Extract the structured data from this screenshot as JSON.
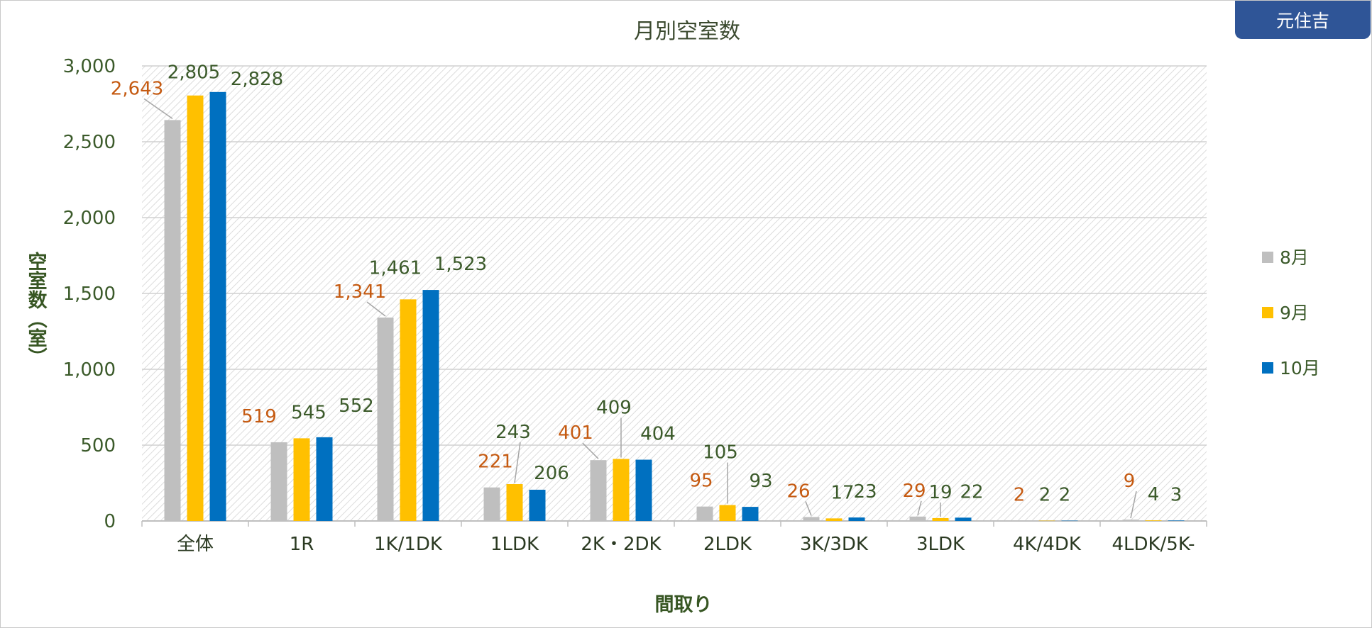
{
  "badge": {
    "label": "元住吉"
  },
  "chart_data": {
    "type": "bar",
    "title": "月別空室数",
    "xlabel": "間取り",
    "ylabel": "空室数（室）",
    "ylim": [
      0,
      3000
    ],
    "yticks": [
      0,
      500,
      1000,
      1500,
      2000,
      2500,
      3000
    ],
    "ytick_labels": [
      "0",
      "500",
      "1,000",
      "1,500",
      "2,000",
      "2,500",
      "3,000"
    ],
    "categories": [
      "全体",
      "1R",
      "1K/1DK",
      "1LDK",
      "2K・2DK",
      "2LDK",
      "3K/3DK",
      "3LDK",
      "4K/4DK",
      "4LDK/5K-"
    ],
    "series": [
      {
        "name": "8月",
        "color": "#bfbfbf",
        "label_color": "#c55a11",
        "values": [
          2643,
          519,
          1341,
          221,
          401,
          95,
          26,
          29,
          2,
          9
        ],
        "labels": [
          "2,643",
          "519",
          "1,341",
          "221",
          "401",
          "95",
          "26",
          "29",
          "2",
          "9"
        ]
      },
      {
        "name": "9月",
        "color": "#ffc000",
        "label_color": "#3b5a2a",
        "values": [
          2805,
          545,
          1461,
          243,
          409,
          105,
          17,
          19,
          2,
          4
        ],
        "labels": [
          "2,805",
          "545",
          "1,461",
          "243",
          "409",
          "105",
          "17",
          "19",
          "2",
          "4"
        ]
      },
      {
        "name": "10月",
        "color": "#0070c0",
        "label_color": "#3b5a2a",
        "values": [
          2828,
          552,
          1523,
          206,
          404,
          93,
          23,
          22,
          2,
          3
        ],
        "labels": [
          "2,828",
          "552",
          "1,523",
          "206",
          "404",
          "93",
          "23",
          "22",
          "2",
          "3"
        ]
      }
    ],
    "legend_position": "right",
    "grid": true
  }
}
